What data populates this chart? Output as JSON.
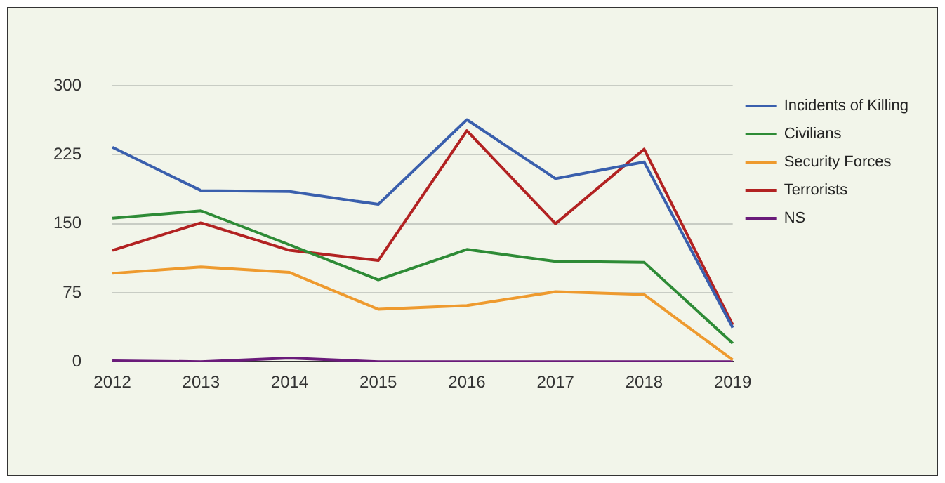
{
  "chart_data": {
    "type": "line",
    "categories": [
      "2012",
      "2013",
      "2014",
      "2015",
      "2016",
      "2017",
      "2018",
      "2019"
    ],
    "series": [
      {
        "name": "Incidents of Killing",
        "color": "#3a5fad",
        "values": [
          233,
          186,
          185,
          171,
          263,
          199,
          217,
          37
        ]
      },
      {
        "name": "Civilians",
        "color": "#2e8b36",
        "values": [
          156,
          164,
          127,
          89,
          122,
          109,
          108,
          20
        ]
      },
      {
        "name": "Security Forces",
        "color": "#ee9a2e",
        "values": [
          96,
          103,
          97,
          57,
          61,
          76,
          73,
          2
        ]
      },
      {
        "name": "Terrorists",
        "color": "#b22222",
        "values": [
          121,
          151,
          121,
          110,
          251,
          150,
          231,
          40
        ]
      },
      {
        "name": "NS",
        "color": "#6a1b7a",
        "values": [
          1,
          0,
          4,
          0,
          0,
          0,
          0,
          0
        ]
      }
    ],
    "ylim": [
      0,
      300
    ],
    "yticks": [
      0,
      75,
      150,
      225,
      300
    ],
    "grid": "y",
    "legend": "right",
    "marker": "none",
    "line_style": "solid"
  }
}
